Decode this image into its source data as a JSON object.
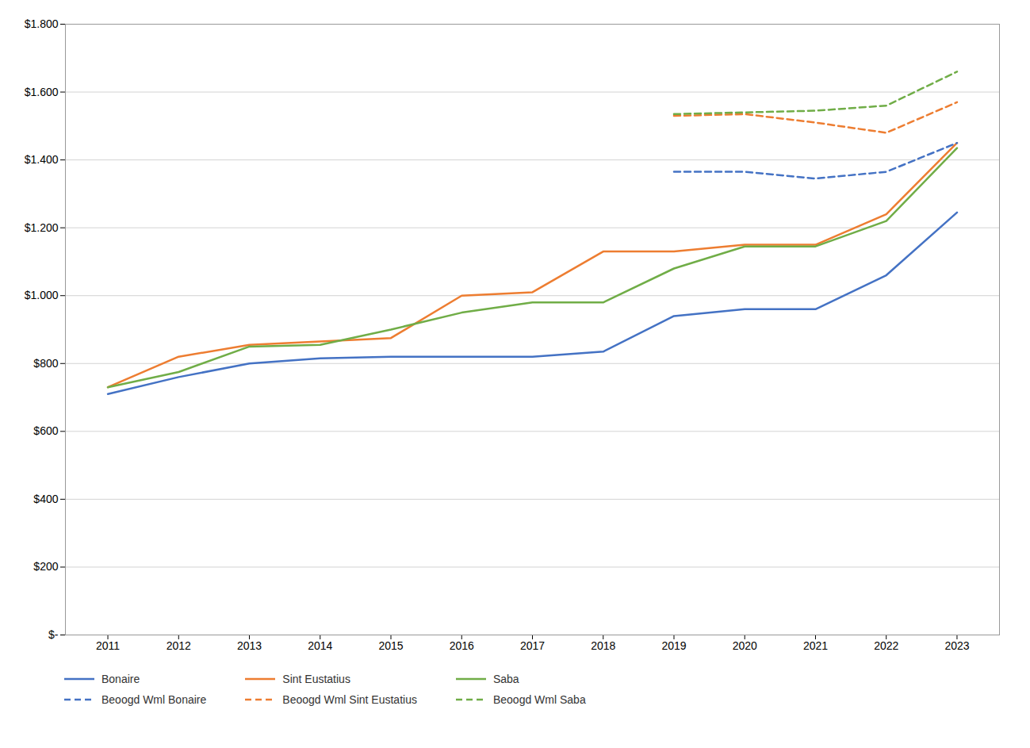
{
  "chart_data": {
    "type": "line",
    "x": [
      2011,
      2012,
      2013,
      2014,
      2015,
      2016,
      2017,
      2018,
      2019,
      2020,
      2021,
      2022,
      2023
    ],
    "series": [
      {
        "name": "Bonaire",
        "color": "#4472C4",
        "line_style": "solid",
        "values": [
          710,
          760,
          800,
          815,
          820,
          820,
          820,
          835,
          940,
          960,
          960,
          1060,
          1245
        ]
      },
      {
        "name": "Sint Eustatius",
        "color": "#ED7D31",
        "line_style": "solid",
        "values": [
          730,
          820,
          855,
          865,
          875,
          1000,
          1010,
          1130,
          1130,
          1150,
          1150,
          1240,
          1450
        ]
      },
      {
        "name": "Saba",
        "color": "#70AD47",
        "line_style": "solid",
        "values": [
          730,
          775,
          850,
          855,
          900,
          950,
          980,
          980,
          1080,
          1145,
          1145,
          1220,
          1435
        ]
      },
      {
        "name": "Beoogd Wml Bonaire",
        "color": "#4472C4",
        "line_style": "dashed",
        "values": [
          null,
          null,
          null,
          null,
          null,
          null,
          null,
          null,
          1365,
          1365,
          1345,
          1365,
          1450
        ]
      },
      {
        "name": "Beoogd Wml Sint Eustatius",
        "color": "#ED7D31",
        "line_style": "dashed",
        "values": [
          null,
          null,
          null,
          null,
          null,
          null,
          null,
          null,
          1530,
          1535,
          1510,
          1480,
          1570
        ]
      },
      {
        "name": "Beoogd Wml Saba",
        "color": "#70AD47",
        "line_style": "dashed",
        "values": [
          null,
          null,
          null,
          null,
          null,
          null,
          null,
          null,
          1535,
          1540,
          1545,
          1560,
          1660
        ]
      }
    ],
    "xlim": [
      2010.4,
      2023.6
    ],
    "xticks": [
      2011,
      2012,
      2013,
      2014,
      2015,
      2016,
      2017,
      2018,
      2019,
      2020,
      2021,
      2022,
      2023
    ],
    "ylim": [
      0,
      1800
    ],
    "yticks": [
      {
        "value": 0,
        "label": "$-"
      },
      {
        "value": 200,
        "label": "$200"
      },
      {
        "value": 400,
        "label": "$400"
      },
      {
        "value": 600,
        "label": "$600"
      },
      {
        "value": 800,
        "label": "$800"
      },
      {
        "value": 1000,
        "label": "$1.000"
      },
      {
        "value": 1200,
        "label": "$1.200"
      },
      {
        "value": 1400,
        "label": "$1.400"
      },
      {
        "value": 1600,
        "label": "$1.600"
      },
      {
        "value": 1800,
        "label": "$1.800"
      }
    ],
    "grid": "y",
    "legend": "bottom"
  }
}
